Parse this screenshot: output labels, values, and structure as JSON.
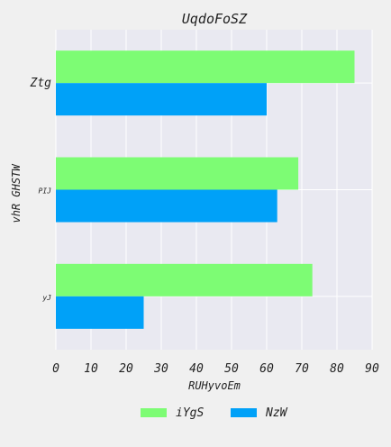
{
  "chart_data": {
    "type": "bar",
    "orientation": "horizontal",
    "title": "UqdoFoSZ",
    "xlabel": "RUHyvoEm",
    "ylabel": "vhR   GHSTW",
    "categories": [
      "Ztg",
      "PIJ",
      "yJ"
    ],
    "series": [
      {
        "name": "iYgS",
        "color": "#7dfc74",
        "values": [
          85,
          69,
          73
        ]
      },
      {
        "name": "NzW",
        "color": "#00a1f8",
        "values": [
          60,
          63,
          25
        ]
      }
    ],
    "xlim": [
      0,
      90
    ],
    "xticks": [
      0,
      10,
      20,
      30,
      40,
      50,
      60,
      70,
      80,
      90
    ],
    "grid": true,
    "legend_position": "bottom",
    "colors": {
      "background": "#f0f0f0",
      "plot_background": "#e9e9f1",
      "grid": "#ffffff"
    }
  }
}
